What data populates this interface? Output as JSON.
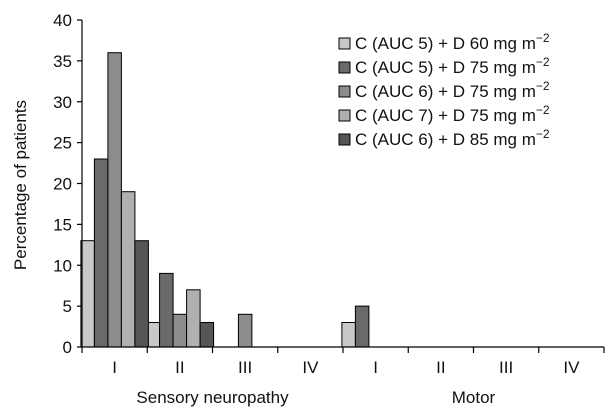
{
  "chart_data": {
    "type": "bar",
    "title": "",
    "xlabel": "",
    "ylabel": "Percentage of patients",
    "ylim": [
      0,
      40
    ],
    "yticks": [
      0,
      5,
      10,
      15,
      20,
      25,
      30,
      35,
      40
    ],
    "grid": false,
    "legend_position": "top-right",
    "categories": [
      "I",
      "II",
      "III",
      "IV",
      "I",
      "II",
      "III",
      "IV"
    ],
    "groups": [
      {
        "label": "Sensory neuropathy",
        "categories": [
          "I",
          "II",
          "III",
          "IV"
        ]
      },
      {
        "label": "Motor",
        "categories": [
          "I",
          "II",
          "III",
          "IV"
        ]
      }
    ],
    "series": [
      {
        "name": "C (AUC 5) + D 60 mg m",
        "superscript": "−2",
        "color": "#c8c8c8",
        "values": [
          13,
          3,
          0,
          0,
          3,
          0,
          0,
          0
        ]
      },
      {
        "name": "C (AUC 5) + D 75 mg m",
        "superscript": "−2",
        "color": "#6a6a6a",
        "values": [
          23,
          9,
          0,
          0,
          5,
          0,
          0,
          0
        ]
      },
      {
        "name": "C (AUC 6) + D 75 mg m",
        "superscript": "−2",
        "color": "#8c8c8c",
        "values": [
          36,
          4,
          4,
          0,
          0,
          0,
          0,
          0
        ]
      },
      {
        "name": "C (AUC 7) + D 75 mg m",
        "superscript": "−2",
        "color": "#b0b0b0",
        "values": [
          19,
          7,
          0,
          0,
          0,
          0,
          0,
          0
        ]
      },
      {
        "name": "C (AUC 6) + D 85 mg m",
        "superscript": "−2",
        "color": "#555555",
        "values": [
          13,
          3,
          0,
          0,
          0,
          0,
          0,
          0
        ]
      }
    ]
  }
}
